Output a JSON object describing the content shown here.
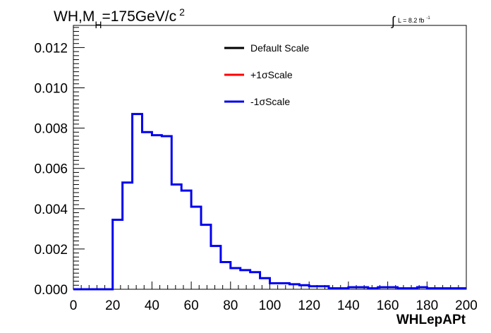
{
  "chart_data": {
    "type": "line",
    "title": {
      "main": "WH,M",
      "sub": "H",
      "value": "=175GeV/c",
      "sup": "2"
    },
    "lumi_label": {
      "integral_sign": "∫",
      "text": "L = 8.2 fb",
      "sup": "-1"
    },
    "xlabel": "WHLepAPt",
    "ylabel": "",
    "xlim": [
      0,
      200
    ],
    "ylim": [
      0,
      0.0131
    ],
    "x_ticks": [
      "0",
      "20",
      "40",
      "60",
      "80",
      "100",
      "120",
      "140",
      "160",
      "180",
      "200"
    ],
    "y_ticks": [
      "0.000",
      "0.002",
      "0.004",
      "0.006",
      "0.008",
      "0.010",
      "0.012"
    ],
    "bin_width": 5,
    "bin_edges_start": 0,
    "legend": {
      "placement": "top-center",
      "entries": [
        {
          "label": "Default Scale",
          "color": "#000000"
        },
        {
          "label": "+1σScale",
          "color": "#ff0000"
        },
        {
          "label": "-1σScale",
          "color": "#0000ee"
        }
      ]
    },
    "series": [
      {
        "name": "-1σScale",
        "color": "#0000ee",
        "values": [
          0,
          0,
          0,
          0,
          0.00345,
          0.0053,
          0.0087,
          0.0078,
          0.00765,
          0.0076,
          0.0052,
          0.0049,
          0.0041,
          0.0032,
          0.00215,
          0.00135,
          0.00105,
          0.00095,
          0.00085,
          0.00055,
          0.0003,
          0.0003,
          0.00025,
          0.0002,
          0.00015,
          0.00015,
          5e-05,
          5e-05,
          0.0001,
          0.0001,
          5e-05,
          0.0001,
          0.0001,
          5e-05,
          5e-05,
          0.0001,
          5e-05,
          5e-05,
          5e-05,
          5e-05
        ]
      }
    ]
  }
}
